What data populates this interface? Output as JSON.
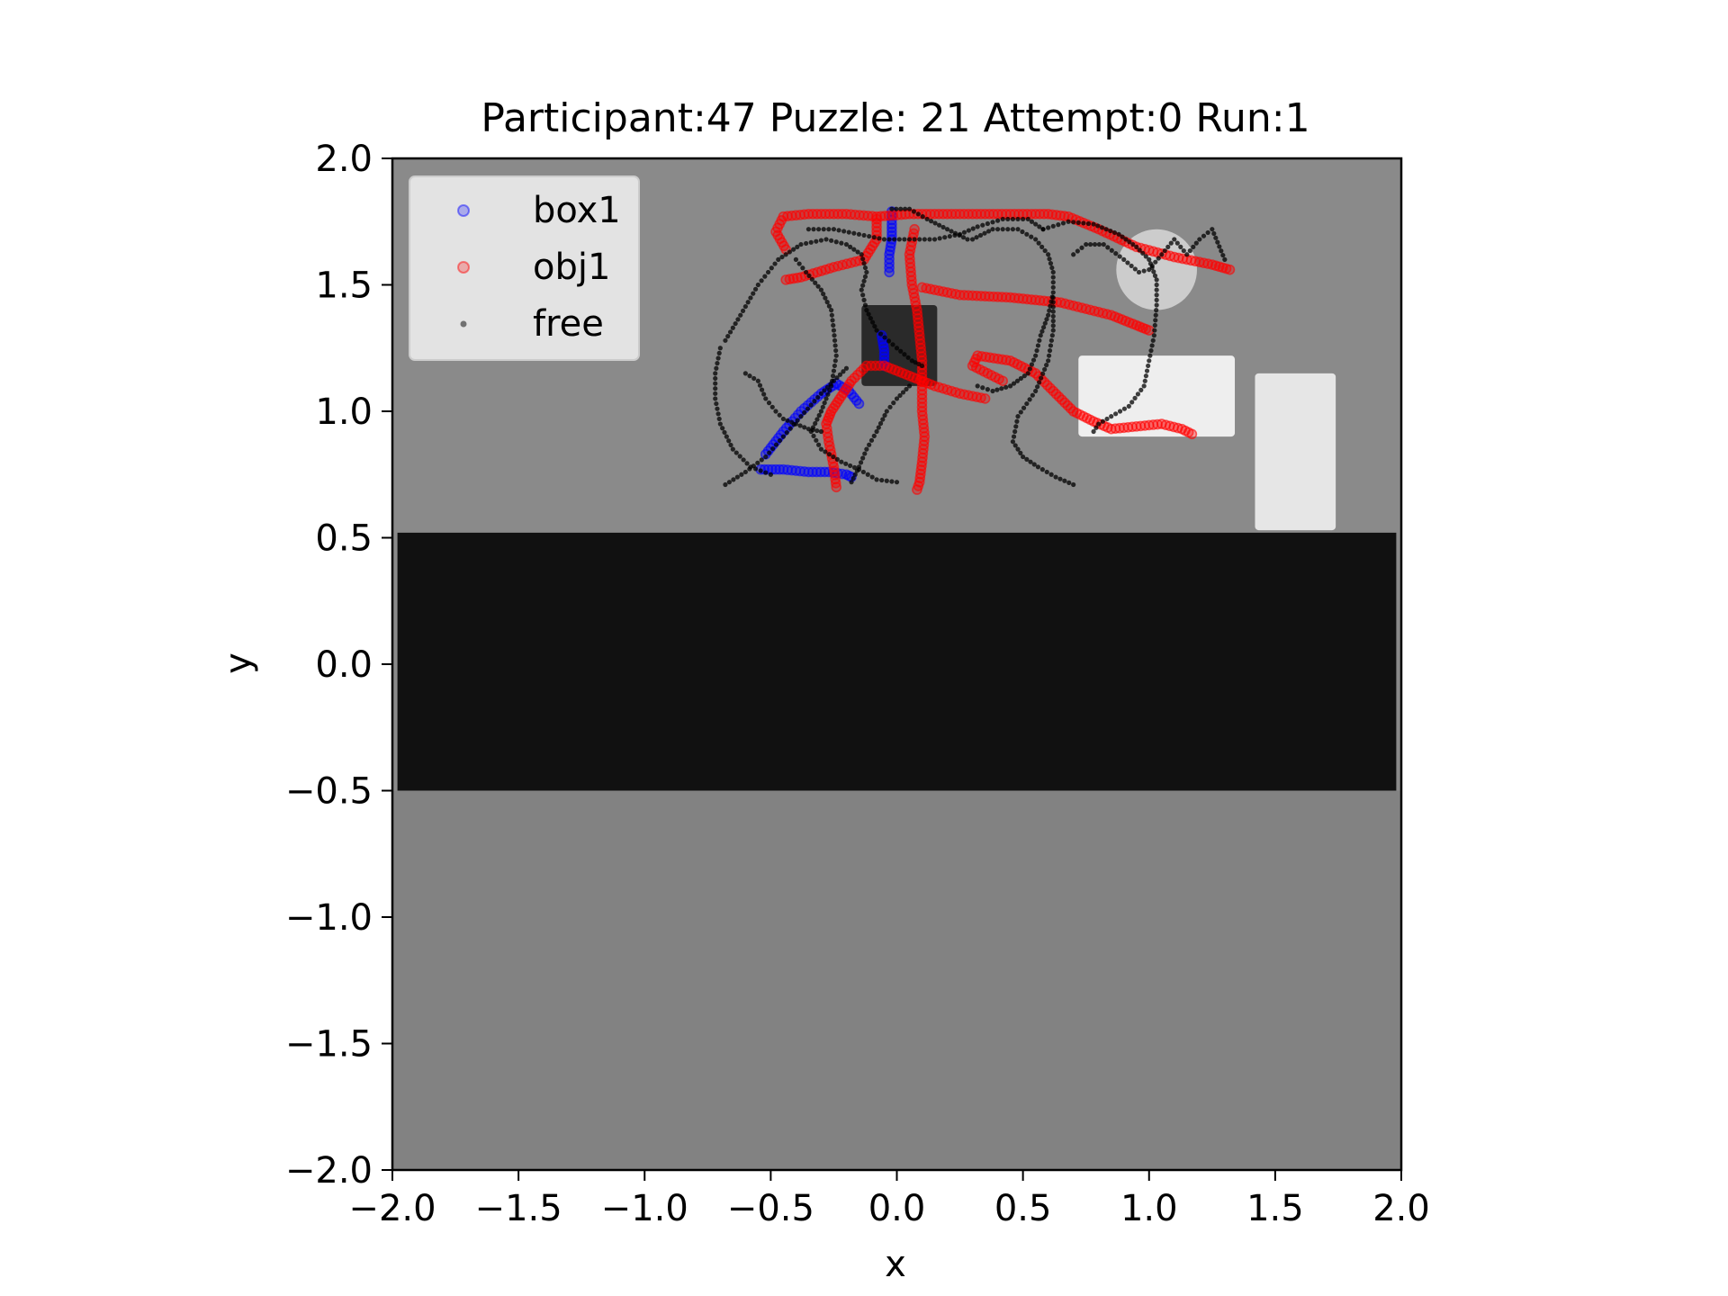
{
  "chart_data": {
    "type": "scatter",
    "title": "Participant:47 Puzzle: 21 Attempt:0 Run:1",
    "xlabel": "x",
    "ylabel": "y",
    "xlim": [
      -2.0,
      2.0
    ],
    "ylim": [
      -2.0,
      2.0
    ],
    "x_ticks": [
      "−2.0",
      "−1.5",
      "−1.0",
      "−0.5",
      "0.0",
      "0.5",
      "1.0",
      "1.5",
      "2.0"
    ],
    "y_ticks": [
      "2.0",
      "1.5",
      "1.0",
      "0.5",
      "0.0",
      "−0.5",
      "−1.0",
      "−1.5",
      "−2.0"
    ],
    "x_tick_values": [
      -2.0,
      -1.5,
      -1.0,
      -0.5,
      0.0,
      0.5,
      1.0,
      1.5,
      2.0
    ],
    "y_tick_values": [
      2.0,
      1.5,
      1.0,
      0.5,
      0.0,
      -0.5,
      -1.0,
      -1.5,
      -2.0
    ],
    "grid": false,
    "legend_position": "top-left",
    "background": {
      "floor_color": "#8a8a8a",
      "lower_floor_color": "#828282",
      "band": {
        "y": [
          -0.5,
          0.52
        ],
        "x": [
          -1.98,
          1.98
        ],
        "color": "#111111"
      },
      "objects": [
        {
          "name": "dark-block",
          "x": [
            -0.14,
            0.16
          ],
          "y": [
            1.1,
            1.42
          ],
          "color": "#2a2a2a"
        },
        {
          "name": "white-slab",
          "x": [
            0.72,
            1.34
          ],
          "y": [
            0.9,
            1.22
          ],
          "color": "#eeeeee"
        },
        {
          "name": "white-pillar",
          "x": [
            1.42,
            1.74
          ],
          "y": [
            0.53,
            1.15
          ],
          "color": "#e6e6e6"
        },
        {
          "name": "sphere",
          "cx": 1.03,
          "cy": 1.56,
          "r": 0.16,
          "color": "#cccccc"
        }
      ]
    },
    "series": [
      {
        "name": "box1",
        "color": "#0000ff",
        "marker": "ring",
        "paths": [
          [
            [
              -0.54,
              0.77
            ],
            [
              -0.45,
              0.77
            ],
            [
              -0.35,
              0.76
            ],
            [
              -0.27,
              0.76
            ],
            [
              -0.2,
              0.75
            ],
            [
              -0.18,
              0.74
            ]
          ],
          [
            [
              -0.52,
              0.83
            ],
            [
              -0.45,
              0.92
            ],
            [
              -0.38,
              1.0
            ],
            [
              -0.3,
              1.07
            ],
            [
              -0.24,
              1.11
            ],
            [
              -0.19,
              1.08
            ],
            [
              -0.15,
              1.03
            ]
          ],
          [
            [
              -0.02,
              1.79
            ],
            [
              -0.02,
              1.74
            ],
            [
              -0.02,
              1.68
            ],
            [
              -0.03,
              1.62
            ],
            [
              -0.03,
              1.55
            ]
          ],
          [
            [
              -0.06,
              1.3
            ],
            [
              -0.05,
              1.24
            ],
            [
              -0.05,
              1.18
            ]
          ]
        ]
      },
      {
        "name": "obj1",
        "color": "#ff0000",
        "marker": "ring",
        "paths": [
          [
            [
              -0.44,
              1.64
            ],
            [
              -0.48,
              1.71
            ],
            [
              -0.45,
              1.77
            ],
            [
              -0.35,
              1.78
            ],
            [
              -0.2,
              1.78
            ],
            [
              -0.08,
              1.77
            ],
            [
              0.05,
              1.78
            ],
            [
              0.2,
              1.78
            ],
            [
              0.4,
              1.78
            ],
            [
              0.6,
              1.78
            ],
            [
              0.68,
              1.77
            ],
            [
              0.8,
              1.72
            ],
            [
              0.95,
              1.65
            ],
            [
              1.1,
              1.61
            ],
            [
              1.25,
              1.58
            ],
            [
              1.32,
              1.56
            ]
          ],
          [
            [
              -0.44,
              1.52
            ],
            [
              -0.38,
              1.53
            ],
            [
              -0.25,
              1.57
            ],
            [
              -0.13,
              1.6
            ],
            [
              -0.08,
              1.68
            ],
            [
              -0.08,
              1.76
            ]
          ],
          [
            [
              0.07,
              1.72
            ],
            [
              0.05,
              1.62
            ],
            [
              0.06,
              1.5
            ],
            [
              0.08,
              1.4
            ],
            [
              0.09,
              1.3
            ],
            [
              0.1,
              1.2
            ],
            [
              0.1,
              1.1
            ],
            [
              0.1,
              1.0
            ],
            [
              0.11,
              0.9
            ],
            [
              0.1,
              0.8
            ],
            [
              0.09,
              0.72
            ],
            [
              0.08,
              0.69
            ]
          ],
          [
            [
              0.1,
              1.49
            ],
            [
              0.25,
              1.46
            ],
            [
              0.45,
              1.45
            ],
            [
              0.65,
              1.43
            ],
            [
              0.85,
              1.38
            ],
            [
              0.95,
              1.34
            ],
            [
              1.0,
              1.32
            ]
          ],
          [
            [
              -0.24,
              0.7
            ],
            [
              -0.25,
              0.78
            ],
            [
              -0.27,
              0.88
            ],
            [
              -0.28,
              0.95
            ],
            [
              -0.26,
              1.0
            ],
            [
              -0.22,
              1.06
            ],
            [
              -0.18,
              1.12
            ],
            [
              -0.12,
              1.18
            ],
            [
              -0.05,
              1.18
            ],
            [
              0.05,
              1.14
            ],
            [
              0.15,
              1.1
            ],
            [
              0.25,
              1.07
            ],
            [
              0.35,
              1.05
            ]
          ],
          [
            [
              0.42,
              1.12
            ],
            [
              0.3,
              1.18
            ],
            [
              0.32,
              1.22
            ],
            [
              0.45,
              1.2
            ],
            [
              0.55,
              1.15
            ],
            [
              0.62,
              1.08
            ],
            [
              0.7,
              1.0
            ],
            [
              0.78,
              0.96
            ],
            [
              0.85,
              0.93
            ],
            [
              0.95,
              0.94
            ],
            [
              1.05,
              0.95
            ],
            [
              1.13,
              0.93
            ],
            [
              1.17,
              0.91
            ]
          ]
        ]
      },
      {
        "name": "free",
        "color": "#000000",
        "marker": "dot",
        "paths": [
          [
            [
              -0.68,
              0.71
            ],
            [
              -0.6,
              0.76
            ],
            [
              -0.52,
              0.82
            ],
            [
              -0.45,
              0.9
            ],
            [
              -0.38,
              0.98
            ],
            [
              -0.3,
              1.07
            ],
            [
              -0.25,
              1.12
            ],
            [
              -0.2,
              1.17
            ]
          ],
          [
            [
              -0.7,
              1.25
            ],
            [
              -0.72,
              1.15
            ],
            [
              -0.72,
              1.05
            ],
            [
              -0.7,
              0.95
            ],
            [
              -0.65,
              0.85
            ],
            [
              -0.58,
              0.78
            ],
            [
              -0.5,
              0.75
            ]
          ],
          [
            [
              -0.68,
              1.28
            ],
            [
              -0.62,
              1.38
            ],
            [
              -0.55,
              1.5
            ],
            [
              -0.47,
              1.6
            ],
            [
              -0.38,
              1.66
            ],
            [
              -0.28,
              1.68
            ],
            [
              -0.2,
              1.66
            ],
            [
              -0.14,
              1.62
            ],
            [
              -0.12,
              1.55
            ],
            [
              -0.14,
              1.48
            ],
            [
              -0.12,
              1.4
            ],
            [
              -0.08,
              1.32
            ],
            [
              0.0,
              1.25
            ],
            [
              0.06,
              1.2
            ],
            [
              0.1,
              1.18
            ]
          ],
          [
            [
              -0.4,
              1.6
            ],
            [
              -0.36,
              1.55
            ],
            [
              -0.3,
              1.48
            ],
            [
              -0.26,
              1.4
            ],
            [
              -0.25,
              1.32
            ],
            [
              -0.24,
              1.22
            ],
            [
              -0.26,
              1.1
            ],
            [
              -0.3,
              1.0
            ],
            [
              -0.34,
              0.92
            ],
            [
              -0.3,
              0.85
            ],
            [
              -0.22,
              0.8
            ],
            [
              -0.15,
              0.77
            ],
            [
              -0.08,
              0.73
            ],
            [
              0.0,
              0.72
            ]
          ],
          [
            [
              -0.6,
              1.15
            ],
            [
              -0.55,
              1.12
            ],
            [
              -0.52,
              1.05
            ],
            [
              -0.48,
              1.0
            ],
            [
              -0.45,
              0.97
            ],
            [
              -0.4,
              0.95
            ],
            [
              -0.35,
              0.93
            ],
            [
              -0.3,
              0.92
            ]
          ],
          [
            [
              -0.18,
              0.72
            ],
            [
              -0.15,
              0.78
            ],
            [
              -0.12,
              0.85
            ],
            [
              -0.08,
              0.92
            ],
            [
              -0.04,
              1.0
            ],
            [
              0.0,
              1.05
            ],
            [
              0.05,
              1.1
            ]
          ],
          [
            [
              -0.35,
              1.72
            ],
            [
              -0.25,
              1.72
            ],
            [
              -0.15,
              1.7
            ],
            [
              -0.05,
              1.68
            ],
            [
              0.05,
              1.68
            ],
            [
              0.15,
              1.68
            ],
            [
              0.25,
              1.7
            ],
            [
              0.32,
              1.73
            ],
            [
              0.42,
              1.76
            ],
            [
              0.52,
              1.76
            ],
            [
              0.58,
              1.72
            ]
          ],
          [
            [
              0.3,
              1.68
            ],
            [
              0.38,
              1.72
            ],
            [
              0.48,
              1.72
            ],
            [
              0.55,
              1.68
            ],
            [
              0.6,
              1.62
            ],
            [
              0.62,
              1.55
            ],
            [
              0.62,
              1.47
            ],
            [
              0.6,
              1.38
            ],
            [
              0.57,
              1.3
            ],
            [
              0.55,
              1.22
            ],
            [
              0.52,
              1.15
            ],
            [
              0.45,
              1.1
            ],
            [
              0.38,
              1.08
            ],
            [
              0.32,
              1.1
            ]
          ],
          [
            [
              0.58,
              1.72
            ],
            [
              0.68,
              1.75
            ],
            [
              0.78,
              1.74
            ],
            [
              0.88,
              1.7
            ],
            [
              0.95,
              1.65
            ],
            [
              1.0,
              1.6
            ],
            [
              1.03,
              1.52
            ],
            [
              1.03,
              1.42
            ],
            [
              1.02,
              1.3
            ],
            [
              1.0,
              1.2
            ],
            [
              0.98,
              1.1
            ],
            [
              0.92,
              1.02
            ],
            [
              0.85,
              0.98
            ],
            [
              0.8,
              0.95
            ],
            [
              0.78,
              0.92
            ]
          ],
          [
            [
              0.7,
              1.62
            ],
            [
              0.75,
              1.66
            ],
            [
              0.82,
              1.66
            ],
            [
              0.9,
              1.6
            ],
            [
              0.96,
              1.55
            ],
            [
              1.0,
              1.56
            ],
            [
              1.05,
              1.62
            ],
            [
              1.1,
              1.68
            ],
            [
              1.15,
              1.62
            ],
            [
              1.2,
              1.68
            ],
            [
              1.25,
              1.72
            ],
            [
              1.3,
              1.6
            ]
          ],
          [
            [
              0.62,
              1.45
            ],
            [
              0.62,
              1.32
            ],
            [
              0.6,
              1.2
            ],
            [
              0.55,
              1.08
            ],
            [
              0.48,
              0.98
            ],
            [
              0.46,
              0.88
            ],
            [
              0.5,
              0.82
            ],
            [
              0.56,
              0.78
            ],
            [
              0.63,
              0.74
            ],
            [
              0.7,
              0.71
            ]
          ],
          [
            [
              -0.02,
              1.8
            ],
            [
              0.05,
              1.8
            ],
            [
              0.12,
              1.76
            ],
            [
              0.2,
              1.72
            ],
            [
              0.28,
              1.68
            ]
          ]
        ]
      }
    ]
  }
}
